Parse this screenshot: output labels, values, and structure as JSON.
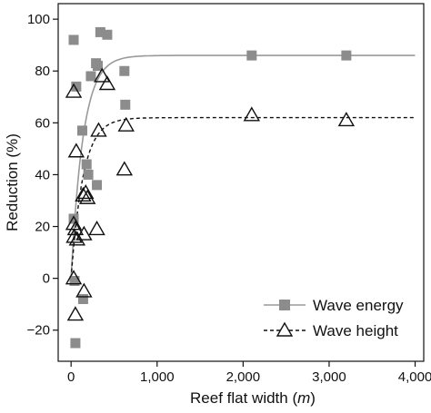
{
  "chart_data": {
    "type": "scatter",
    "xlabel_main": "Reef flat width (",
    "xlabel_unit": "m",
    "xlabel_close": ")",
    "ylabel": "Reduction (%)",
    "xlim": [
      -150,
      4100
    ],
    "ylim": [
      -32,
      106
    ],
    "x_ticks": [
      0,
      1000,
      2000,
      3000,
      4000
    ],
    "x_tick_labels": [
      "0",
      "1,000",
      "2,000",
      "3,000",
      "4,000"
    ],
    "y_ticks": [
      -20,
      0,
      20,
      40,
      60,
      80,
      100
    ],
    "y_tick_labels": [
      "−20",
      "0",
      "20",
      "40",
      "60",
      "80",
      "100"
    ],
    "legend_position": "bottom-right",
    "series": [
      {
        "name": "Wave energy",
        "marker": "square",
        "marker_color": "#8c8c8c",
        "fit_line_color": "#9a9a9a",
        "fit_line_style": "solid",
        "fit": {
          "max": 86,
          "k": 0.0072
        },
        "points": [
          {
            "x": 30,
            "y": 92
          },
          {
            "x": 60,
            "y": 74
          },
          {
            "x": 30,
            "y": 23
          },
          {
            "x": 40,
            "y": -1
          },
          {
            "x": 50,
            "y": -25
          },
          {
            "x": 140,
            "y": -8
          },
          {
            "x": 130,
            "y": 57
          },
          {
            "x": 180,
            "y": 44
          },
          {
            "x": 200,
            "y": 40
          },
          {
            "x": 230,
            "y": 78
          },
          {
            "x": 290,
            "y": 83
          },
          {
            "x": 310,
            "y": 82
          },
          {
            "x": 340,
            "y": 95
          },
          {
            "x": 420,
            "y": 94
          },
          {
            "x": 300,
            "y": 36
          },
          {
            "x": 620,
            "y": 80
          },
          {
            "x": 630,
            "y": 67
          },
          {
            "x": 2100,
            "y": 86
          },
          {
            "x": 3200,
            "y": 86
          }
        ]
      },
      {
        "name": "Wave height",
        "marker": "triangle",
        "marker_color": "#111111",
        "fit_line_color": "#111111",
        "fit_line_style": "dashed",
        "fit": {
          "max": 62,
          "k": 0.0072
        },
        "points": [
          {
            "x": 30,
            "y": 72
          },
          {
            "x": 60,
            "y": 49
          },
          {
            "x": 30,
            "y": 21
          },
          {
            "x": 35,
            "y": 16
          },
          {
            "x": 50,
            "y": 19
          },
          {
            "x": 70,
            "y": 15
          },
          {
            "x": 30,
            "y": 0
          },
          {
            "x": 50,
            "y": -14
          },
          {
            "x": 150,
            "y": -5
          },
          {
            "x": 140,
            "y": 32
          },
          {
            "x": 170,
            "y": 33
          },
          {
            "x": 190,
            "y": 31
          },
          {
            "x": 150,
            "y": 17
          },
          {
            "x": 300,
            "y": 19
          },
          {
            "x": 320,
            "y": 57
          },
          {
            "x": 360,
            "y": 78
          },
          {
            "x": 420,
            "y": 75
          },
          {
            "x": 640,
            "y": 59
          },
          {
            "x": 620,
            "y": 42
          },
          {
            "x": 2100,
            "y": 63
          },
          {
            "x": 3200,
            "y": 61
          }
        ]
      }
    ]
  }
}
